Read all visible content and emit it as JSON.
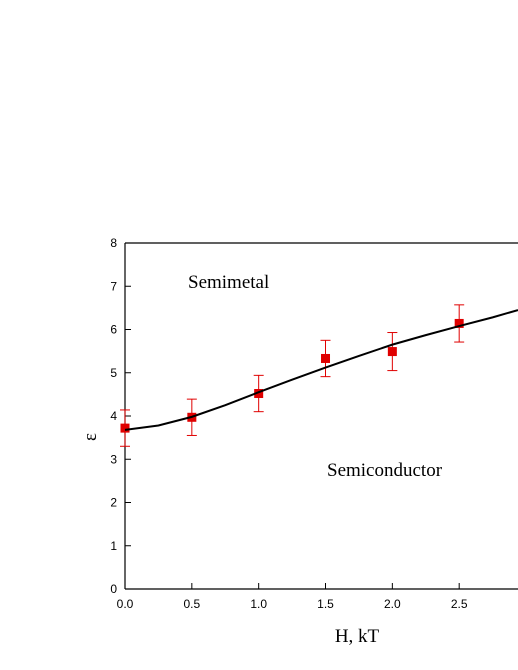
{
  "chart_data": {
    "type": "scatter",
    "xlabel": "H, kT",
    "ylabel": "ε",
    "annotations": [
      "Semimetal",
      "Semiconductor"
    ],
    "series": [
      {
        "type": "scatter",
        "color": "#e00000",
        "x": [
          0,
          0.5,
          1,
          1.5,
          2,
          2.5
        ],
        "values": [
          3.72,
          3.97,
          4.52,
          5.33,
          5.49,
          6.14
        ],
        "errors": [
          0.42,
          0.42,
          0.42,
          0.42,
          0.44,
          0.43
        ]
      },
      {
        "type": "line",
        "color": "#000000",
        "x": [
          0,
          0.25,
          0.5,
          0.75,
          1,
          1.25,
          1.5,
          1.75,
          2,
          2.25,
          2.5,
          2.75,
          2.94
        ],
        "values": [
          3.68,
          3.78,
          3.98,
          4.25,
          4.55,
          4.84,
          5.12,
          5.39,
          5.65,
          5.87,
          6.08,
          6.28,
          6.45
        ]
      }
    ],
    "xlim": [
      0,
      2.94
    ],
    "ylim": [
      0,
      8
    ],
    "xticks": [
      {
        "value": 0,
        "label": "0.0"
      },
      {
        "value": 0.5,
        "label": "0.5"
      },
      {
        "value": 1,
        "label": "1.0"
      },
      {
        "value": 1.5,
        "label": "1.5"
      },
      {
        "value": 2,
        "label": "2.0"
      },
      {
        "value": 2.5,
        "label": "2.5"
      }
    ],
    "yticks": [
      0,
      1,
      2,
      3,
      4,
      5,
      6,
      7,
      8
    ]
  }
}
